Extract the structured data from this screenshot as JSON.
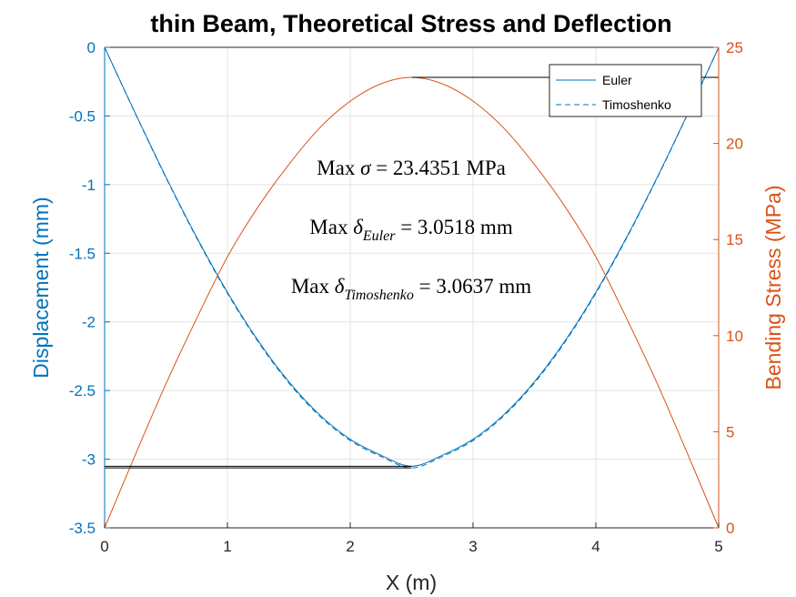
{
  "chart_data": {
    "type": "line",
    "title": "thin Beam, Theoretical Stress and Deflection",
    "xlabel": "X (m)",
    "ylabel_left": "Displacement (mm)",
    "ylabel_right": "Bending Stress (MPa)",
    "xlim": [
      0,
      5
    ],
    "ylim_left": [
      -3.5,
      0
    ],
    "ylim_right": [
      0,
      25
    ],
    "x_ticks": [
      "0",
      "1",
      "2",
      "3",
      "4",
      "5"
    ],
    "y_left_ticks": [
      "0",
      "-0.5",
      "-1",
      "-1.5",
      "-2",
      "-2.5",
      "-3",
      "-3.5"
    ],
    "y_right_ticks": [
      "0",
      "5",
      "10",
      "15",
      "20",
      "25"
    ],
    "grid": true,
    "legend_position": "top-right",
    "series": [
      {
        "name": "Euler",
        "axis": "left",
        "color": "#0072BD",
        "style": "solid",
        "x": [
          0,
          0.25,
          0.5,
          0.75,
          1.0,
          1.25,
          1.5,
          1.75,
          2.0,
          2.25,
          2.5,
          2.75,
          3.0,
          3.25,
          3.5,
          3.75,
          4.0,
          4.25,
          4.5,
          4.75,
          5.0
        ],
        "y": [
          0,
          -0.4802,
          -0.9459,
          -1.3839,
          -1.7838,
          -2.1366,
          -2.4356,
          -2.676,
          -2.8548,
          -2.9709,
          -3.0518,
          -2.9709,
          -2.8548,
          -2.676,
          -2.4356,
          -2.1366,
          -1.7838,
          -1.3839,
          -0.9459,
          -0.4802,
          0
        ]
      },
      {
        "name": "Timoshenko",
        "axis": "left",
        "color": "#0072BD",
        "style": "dashed",
        "x": [
          0,
          0.25,
          0.5,
          0.75,
          1.0,
          1.25,
          1.5,
          1.75,
          2.0,
          2.25,
          2.5,
          2.75,
          3.0,
          3.25,
          3.5,
          3.75,
          4.0,
          4.25,
          4.5,
          4.75,
          5.0
        ],
        "y": [
          0,
          -0.4826,
          -0.9505,
          -1.3902,
          -1.7914,
          -2.1451,
          -2.4446,
          -2.6852,
          -2.8642,
          -2.9805,
          -3.0637,
          -2.9805,
          -2.8642,
          -2.6852,
          -2.4446,
          -2.1451,
          -1.7914,
          -1.3902,
          -0.9505,
          -0.4826,
          0
        ]
      },
      {
        "axis": "right",
        "color": "#D95319",
        "style": "solid",
        "x": [
          0,
          0.25,
          0.5,
          0.75,
          1.0,
          1.25,
          1.5,
          1.75,
          2.0,
          2.25,
          2.5,
          2.75,
          3.0,
          3.25,
          3.5,
          3.75,
          4.0,
          4.25,
          4.5,
          4.75,
          5.0
        ],
        "y": [
          0,
          3.8,
          7.5,
          10.9,
          14.1,
          16.7,
          18.9,
          20.8,
          22.2,
          23.1,
          23.4351,
          23.1,
          22.2,
          20.8,
          18.9,
          16.7,
          14.1,
          10.9,
          7.5,
          3.8,
          0
        ]
      }
    ],
    "reference_lines": [
      {
        "axis": "right",
        "y": 23.4351,
        "x_from": 2.5,
        "x_to": 5.0,
        "color": "#000000"
      },
      {
        "axis": "left",
        "y": -3.0518,
        "x_from": 0,
        "x_to": 2.5,
        "color": "#000000"
      },
      {
        "axis": "left",
        "y": -3.0637,
        "x_from": 0,
        "x_to": 2.5,
        "color": "#000000"
      }
    ],
    "annotations": [
      {
        "prefix": "Max ",
        "symbol": "σ",
        "subscript": "",
        "suffix": " = 23.4351 MPa"
      },
      {
        "prefix": "Max ",
        "symbol": "δ",
        "subscript": "Euler",
        "suffix": " = 3.0518 mm"
      },
      {
        "prefix": "Max ",
        "symbol": "δ",
        "subscript": "Timoshenko",
        "suffix": " = 3.0637 mm"
      }
    ]
  }
}
